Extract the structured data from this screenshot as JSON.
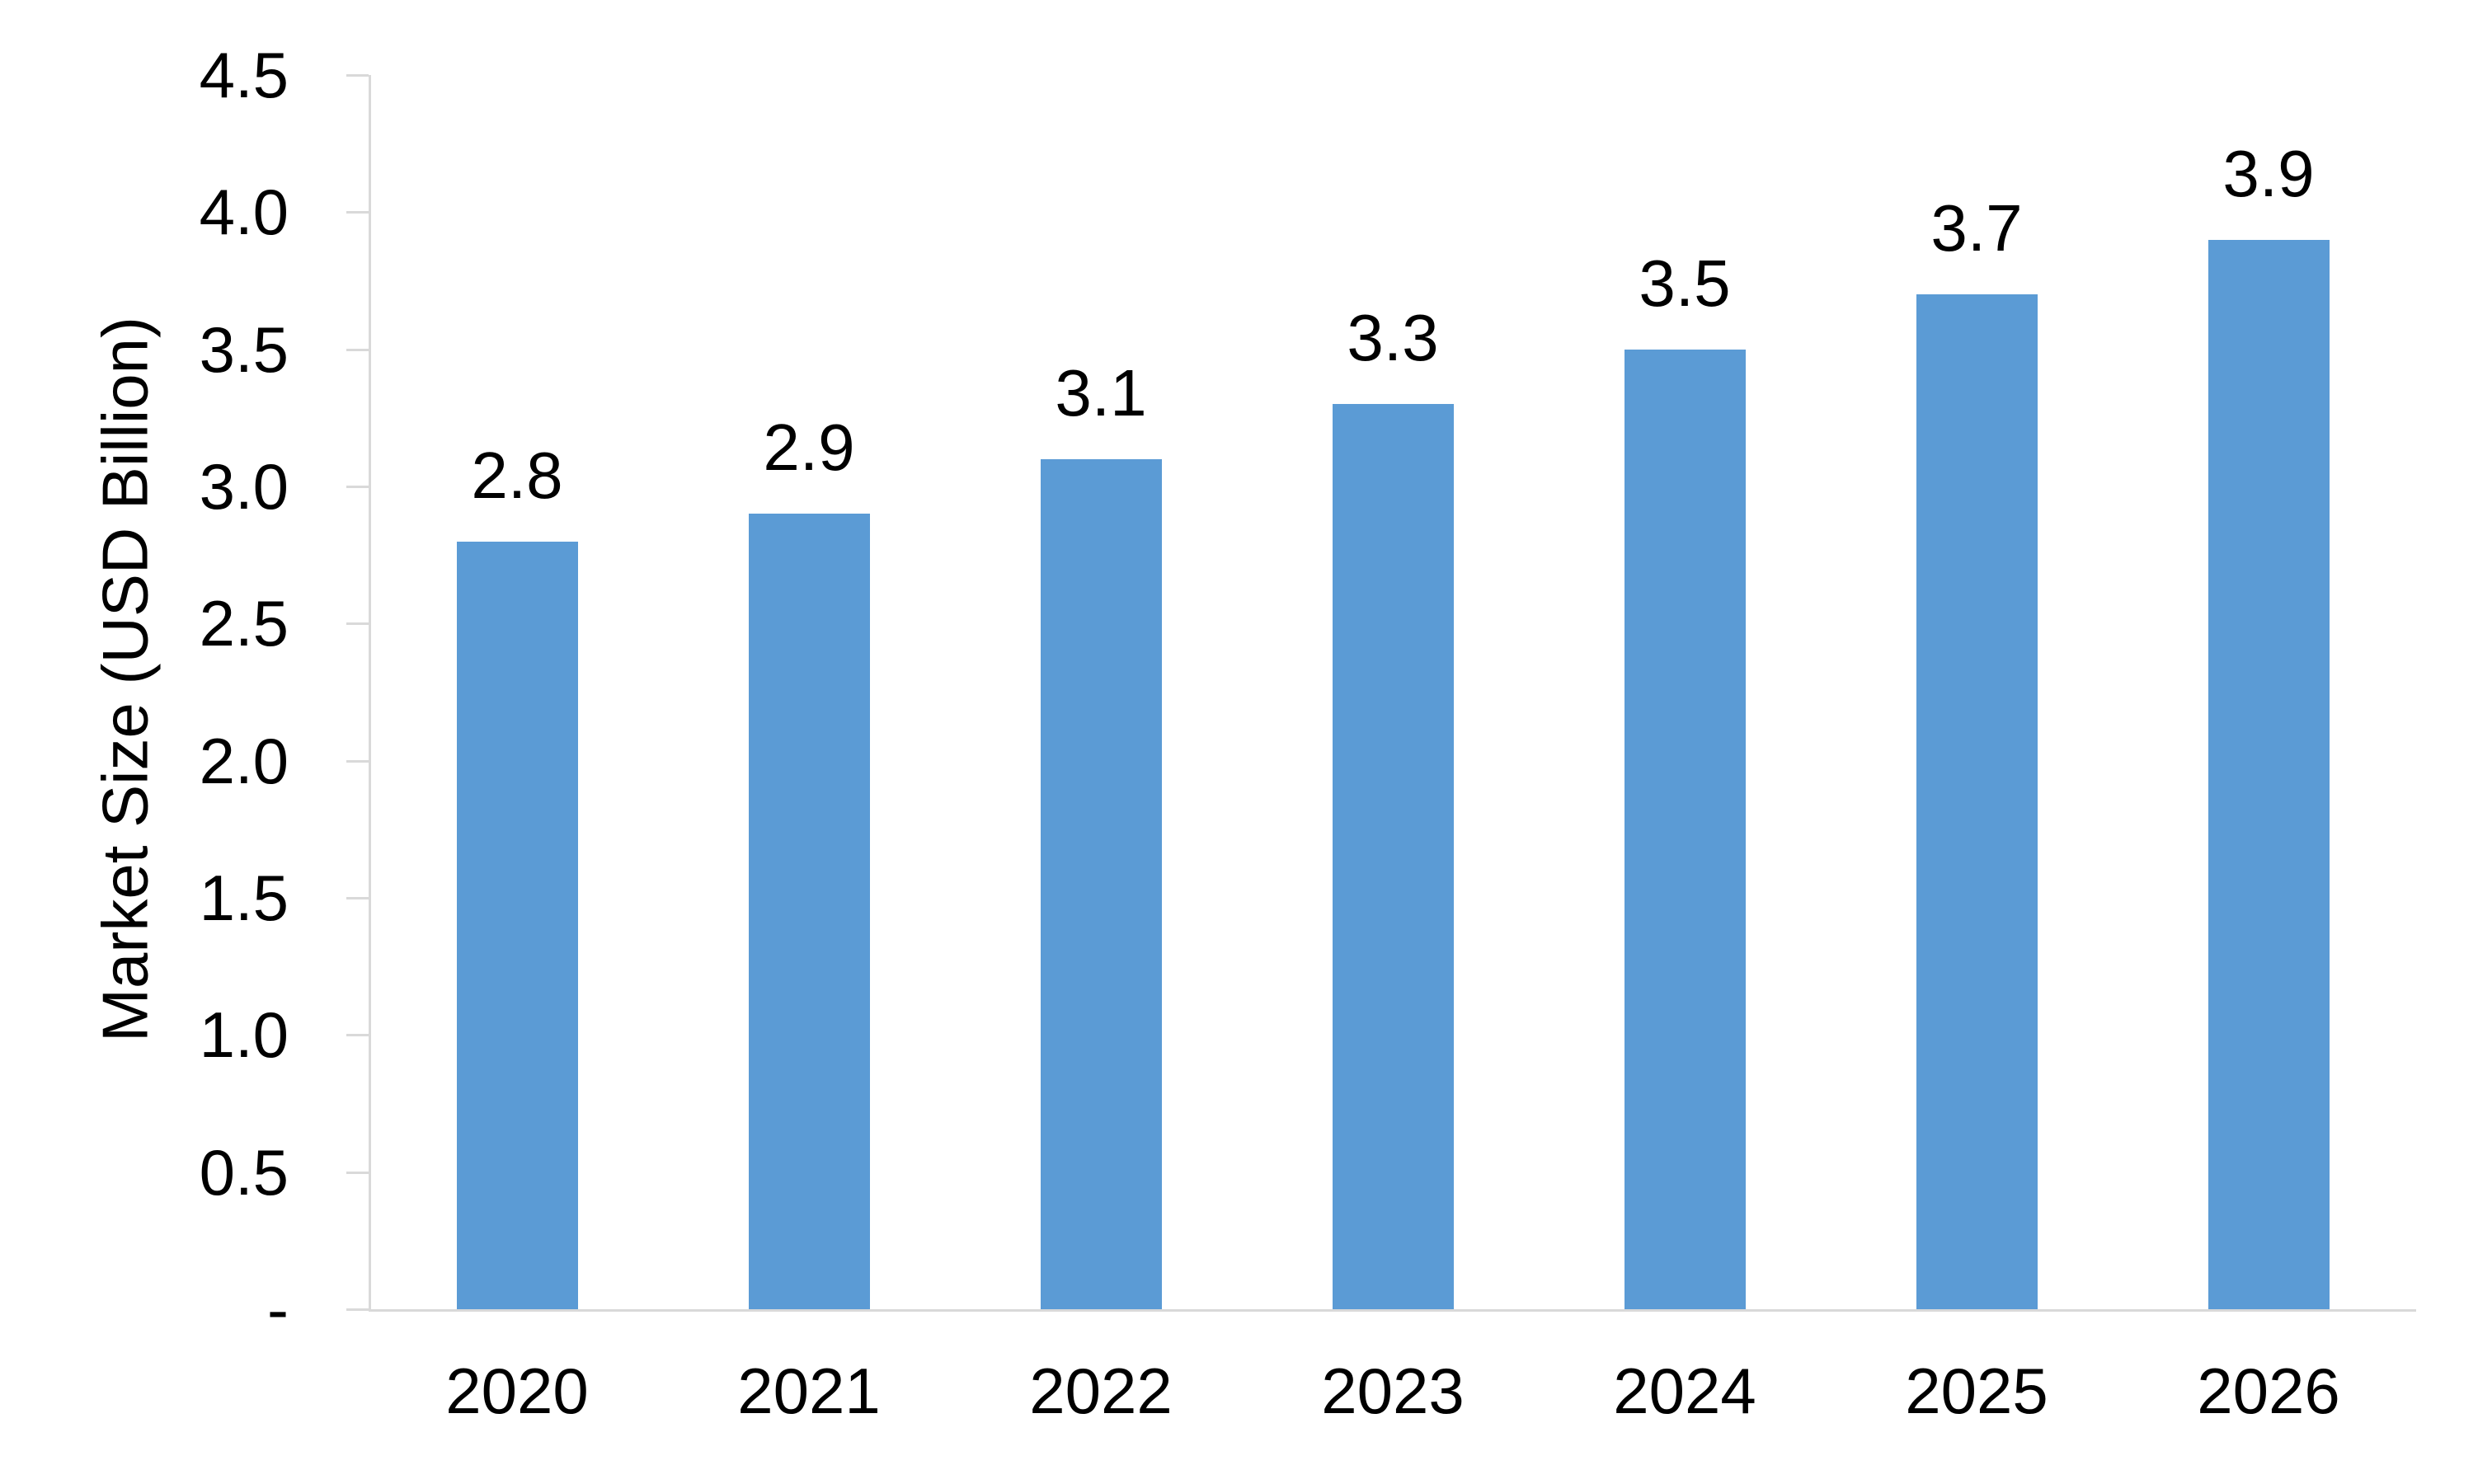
{
  "chart_data": {
    "type": "bar",
    "title": "",
    "categories": [
      "2020",
      "2021",
      "2022",
      "2023",
      "2024",
      "2025",
      "2026"
    ],
    "values": [
      2.8,
      2.9,
      3.1,
      3.3,
      3.5,
      3.7,
      3.9
    ],
    "data_labels": [
      "2.8",
      "2.9",
      "3.1",
      "3.3",
      "3.5",
      "3.7",
      "3.9"
    ],
    "xlabel": "",
    "ylabel": "Market Size (USD Billion)",
    "ylim": [
      0,
      4.5
    ],
    "y_tick_interval": 0.5,
    "y_tick_labels": [
      "-",
      "0.5",
      "1.0",
      "1.5",
      "2.0",
      "2.5",
      "3.0",
      "3.5",
      "4.0",
      "4.5"
    ],
    "legend_position": "none",
    "grid": false,
    "colors": {
      "bar": "#5B9BD5",
      "axis": "#D9D9D9",
      "text": "#000000",
      "background": "#FFFFFF"
    }
  }
}
